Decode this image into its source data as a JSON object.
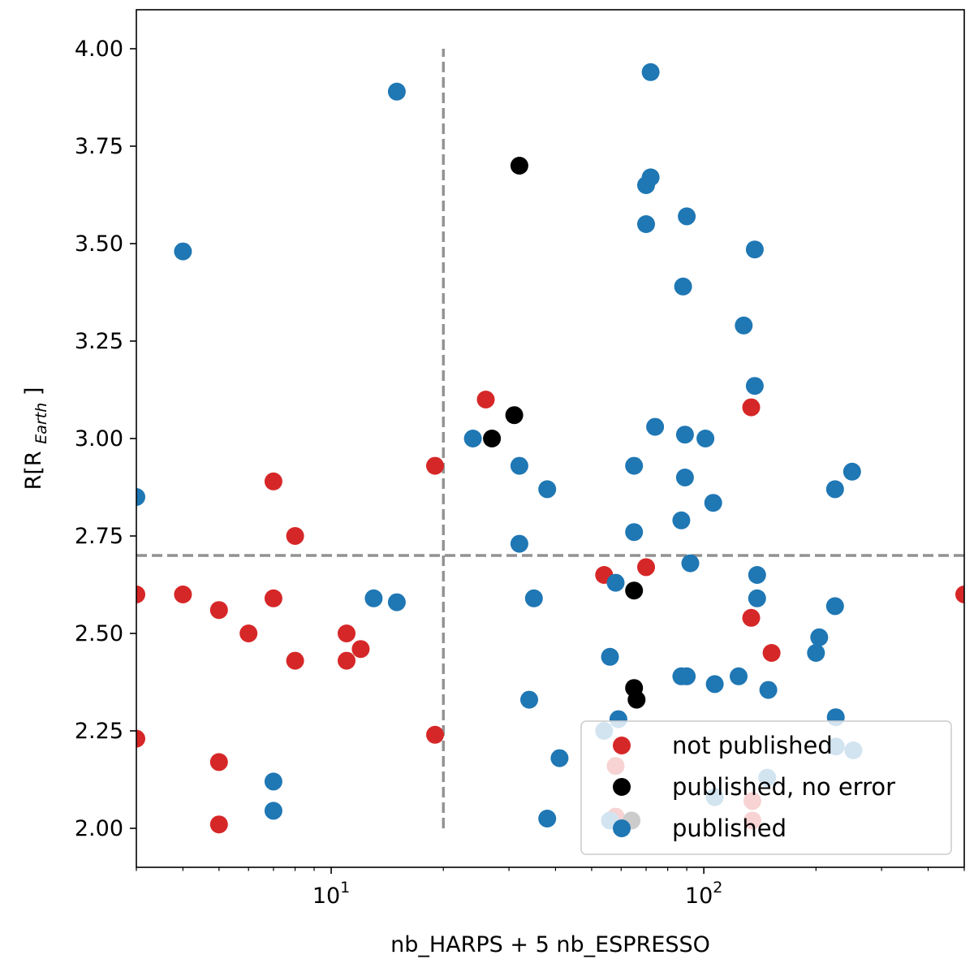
{
  "chart_data": {
    "type": "scatter",
    "xscale": "log",
    "xlim": [
      3,
      500
    ],
    "ylim": [
      1.9,
      4.1
    ],
    "xlabel": "nb_HARPS + 5 nb_ESPRESSO",
    "ylabel": {
      "main": "R[R",
      "sub": "Earth",
      "close": "]"
    },
    "x_major_ticks": [
      {
        "value": 10,
        "base": "10",
        "exp": "1"
      },
      {
        "value": 100,
        "base": "10",
        "exp": "2"
      }
    ],
    "y_ticks": [
      2.0,
      2.25,
      2.5,
      2.75,
      3.0,
      3.25,
      3.5,
      3.75,
      4.0
    ],
    "y_tick_labels": [
      "2.00",
      "2.25",
      "2.50",
      "2.75",
      "3.00",
      "3.25",
      "3.50",
      "3.75",
      "4.00"
    ],
    "grid": false,
    "reference_lines": [
      {
        "orientation": "vertical",
        "x": 20,
        "y_from": 2.0,
        "y_to": 4.0,
        "style": "dashed",
        "color": "#929292"
      },
      {
        "orientation": "horizontal",
        "y": 2.7,
        "style": "dashed",
        "color": "#929292"
      }
    ],
    "legend": {
      "placement": "lower-right",
      "entries": [
        "not published",
        "published, no error",
        "published"
      ]
    },
    "series": [
      {
        "name": "not published",
        "color": "#d62728",
        "points": [
          [
            3,
            2.6
          ],
          [
            3,
            2.23
          ],
          [
            4,
            2.6
          ],
          [
            5,
            2.56
          ],
          [
            5,
            2.17
          ],
          [
            5,
            2.01
          ],
          [
            6,
            2.5
          ],
          [
            7,
            2.89
          ],
          [
            7,
            2.59
          ],
          [
            8,
            2.75
          ],
          [
            8,
            2.43
          ],
          [
            11,
            2.5
          ],
          [
            11,
            2.43
          ],
          [
            12,
            2.46
          ],
          [
            19,
            2.93
          ],
          [
            19,
            2.24
          ],
          [
            26,
            3.1
          ],
          [
            54,
            2.65
          ],
          [
            70,
            2.67
          ],
          [
            134,
            3.08
          ],
          [
            134,
            2.54
          ],
          [
            152,
            2.45
          ],
          [
            500,
            2.6
          ],
          [
            58,
            2.16
          ],
          [
            58,
            2.03
          ],
          [
            135,
            2.07
          ],
          [
            135,
            2.02
          ]
        ]
      },
      {
        "name": "published, no error",
        "color": "#000000",
        "points": [
          [
            32,
            3.7
          ],
          [
            31,
            3.06
          ],
          [
            27,
            3.0
          ],
          [
            65,
            2.61
          ],
          [
            65,
            2.36
          ],
          [
            66,
            2.33
          ],
          [
            64,
            2.02
          ]
        ]
      },
      {
        "name": "published",
        "color": "#1f77b4",
        "points": [
          [
            15,
            3.89
          ],
          [
            72,
            3.94
          ],
          [
            72,
            3.67
          ],
          [
            70,
            3.65
          ],
          [
            70,
            3.55
          ],
          [
            90,
            3.57
          ],
          [
            4,
            3.48
          ],
          [
            137,
            3.485
          ],
          [
            88,
            3.39
          ],
          [
            128,
            3.29
          ],
          [
            137,
            3.135
          ],
          [
            74,
            3.03
          ],
          [
            89,
            3.01
          ],
          [
            101,
            3.0
          ],
          [
            24,
            3.0
          ],
          [
            32,
            2.93
          ],
          [
            65,
            2.93
          ],
          [
            89,
            2.9
          ],
          [
            3,
            2.85
          ],
          [
            38,
            2.87
          ],
          [
            225,
            2.87
          ],
          [
            250,
            2.915
          ],
          [
            106,
            2.835
          ],
          [
            87,
            2.79
          ],
          [
            32,
            2.73
          ],
          [
            65,
            2.76
          ],
          [
            92,
            2.68
          ],
          [
            139,
            2.65
          ],
          [
            58,
            2.63
          ],
          [
            13,
            2.59
          ],
          [
            15,
            2.58
          ],
          [
            35,
            2.59
          ],
          [
            139,
            2.59
          ],
          [
            225,
            2.57
          ],
          [
            204,
            2.49
          ],
          [
            200,
            2.45
          ],
          [
            56,
            2.44
          ],
          [
            87,
            2.39
          ],
          [
            90,
            2.39
          ],
          [
            107,
            2.37
          ],
          [
            124,
            2.39
          ],
          [
            149,
            2.355
          ],
          [
            34,
            2.33
          ],
          [
            59,
            2.28
          ],
          [
            226,
            2.285
          ],
          [
            7,
            2.12
          ],
          [
            7,
            2.045
          ],
          [
            41,
            2.18
          ],
          [
            38,
            2.025
          ],
          [
            54,
            2.25
          ],
          [
            56,
            2.02
          ],
          [
            148,
            2.13
          ],
          [
            107,
            2.08
          ],
          [
            226,
            2.21
          ],
          [
            252,
            2.2
          ]
        ]
      }
    ]
  }
}
